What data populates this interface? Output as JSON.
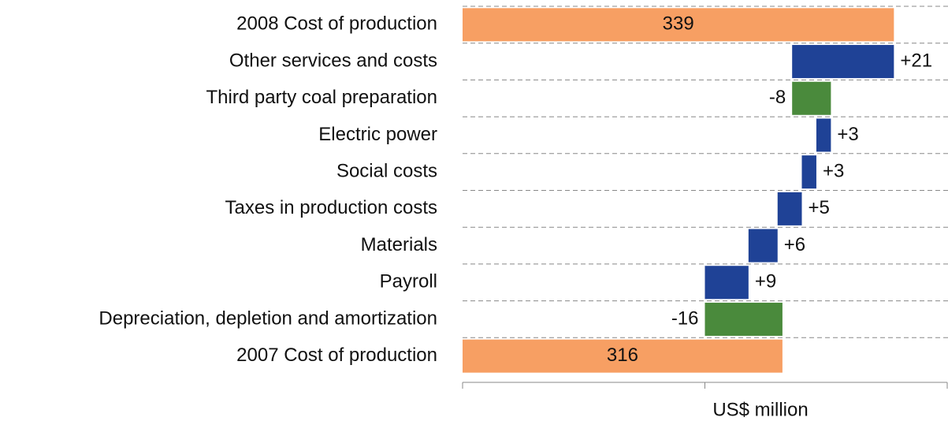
{
  "chart_data": {
    "type": "waterfall",
    "categories": [
      "2008 Cost of production",
      "Other services and costs",
      "Third party coal preparation",
      "Electric power",
      "Social costs",
      "Taxes in production costs",
      "Materials",
      "Payroll",
      "Depreciation, depletion and amortization",
      "2007 Cost of production"
    ],
    "values": [
      339,
      21,
      -8,
      3,
      3,
      5,
      6,
      9,
      -16,
      316
    ],
    "value_labels": [
      "339",
      "+21",
      "-8",
      "+3",
      "+3",
      "+5",
      "+6",
      "+9",
      "-16",
      "316"
    ],
    "measure": [
      "total",
      "relative",
      "relative",
      "relative",
      "relative",
      "relative",
      "relative",
      "relative",
      "relative",
      "total"
    ],
    "colors": {
      "total": "#f79f63",
      "increase": "#1f4296",
      "decrease": "#4a8a3c"
    },
    "xlabel": "US$ million",
    "xlim": [
      250,
      350
    ],
    "xticks": [
      250,
      300,
      350
    ]
  }
}
